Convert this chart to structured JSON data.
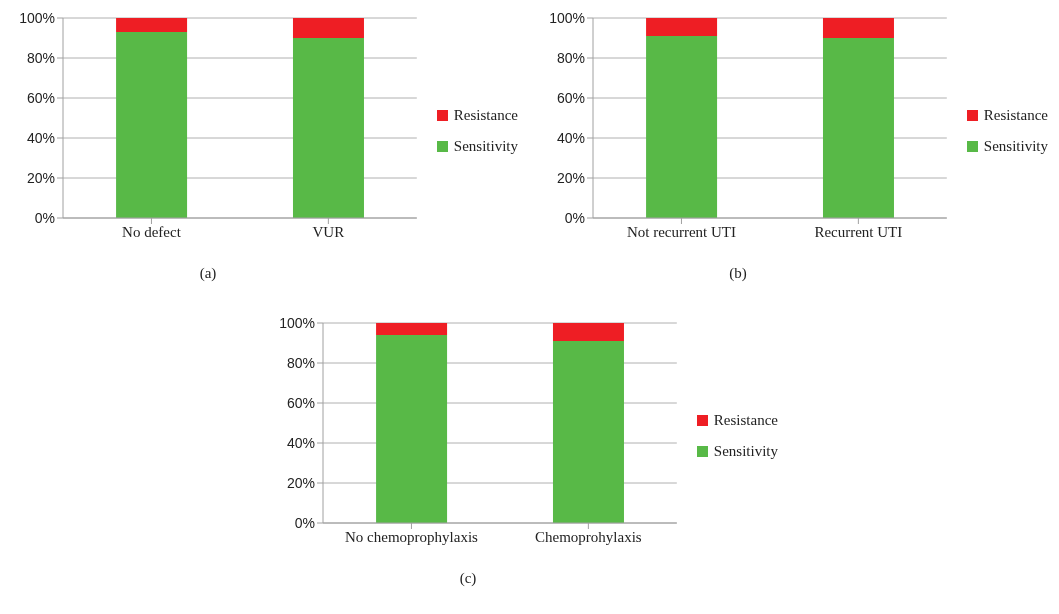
{
  "chart_data": [
    {
      "type": "bar",
      "stacked": true,
      "categories": [
        "No defect",
        "VUR"
      ],
      "series": [
        {
          "name": "Sensitivity",
          "color": "#58b947",
          "values": [
            93,
            90
          ]
        },
        {
          "name": "Resistance",
          "color": "#ee1e24",
          "values": [
            7,
            10
          ]
        }
      ],
      "ylim": [
        0,
        100
      ],
      "yticks": [
        {
          "value": 0,
          "label": "0%"
        },
        {
          "value": 20,
          "label": "20%"
        },
        {
          "value": 40,
          "label": "40%"
        },
        {
          "value": 60,
          "label": "60%"
        },
        {
          "value": 80,
          "label": "80%"
        },
        {
          "value": 100,
          "label": "100%"
        }
      ],
      "grid": "y",
      "legend": "right",
      "annotations": [
        "(a)"
      ]
    },
    {
      "type": "bar",
      "stacked": true,
      "categories": [
        "Not recurrent UTI",
        "Recurrent UTI"
      ],
      "series": [
        {
          "name": "Sensitivity",
          "color": "#58b947",
          "values": [
            91,
            90
          ]
        },
        {
          "name": "Resistance",
          "color": "#ee1e24",
          "values": [
            9,
            10
          ]
        }
      ],
      "ylim": [
        0,
        100
      ],
      "yticks": [
        {
          "value": 0,
          "label": "0%"
        },
        {
          "value": 20,
          "label": "20%"
        },
        {
          "value": 40,
          "label": "40%"
        },
        {
          "value": 60,
          "label": "60%"
        },
        {
          "value": 80,
          "label": "80%"
        },
        {
          "value": 100,
          "label": "100%"
        }
      ],
      "grid": "y",
      "legend": "right",
      "annotations": [
        "(b)"
      ]
    },
    {
      "type": "bar",
      "stacked": true,
      "categories": [
        "No chemoprophylaxis",
        "Chemoprohylaxis"
      ],
      "series": [
        {
          "name": "Sensitivity",
          "color": "#58b947",
          "values": [
            94,
            91
          ]
        },
        {
          "name": "Resistance",
          "color": "#ee1e24",
          "values": [
            6,
            9
          ]
        }
      ],
      "ylim": [
        0,
        100
      ],
      "yticks": [
        {
          "value": 0,
          "label": "0%"
        },
        {
          "value": 20,
          "label": "20%"
        },
        {
          "value": 40,
          "label": "40%"
        },
        {
          "value": 60,
          "label": "60%"
        },
        {
          "value": 80,
          "label": "80%"
        },
        {
          "value": 100,
          "label": "100%"
        }
      ],
      "grid": "y",
      "legend": "right",
      "annotations": [
        "(c)"
      ]
    }
  ]
}
